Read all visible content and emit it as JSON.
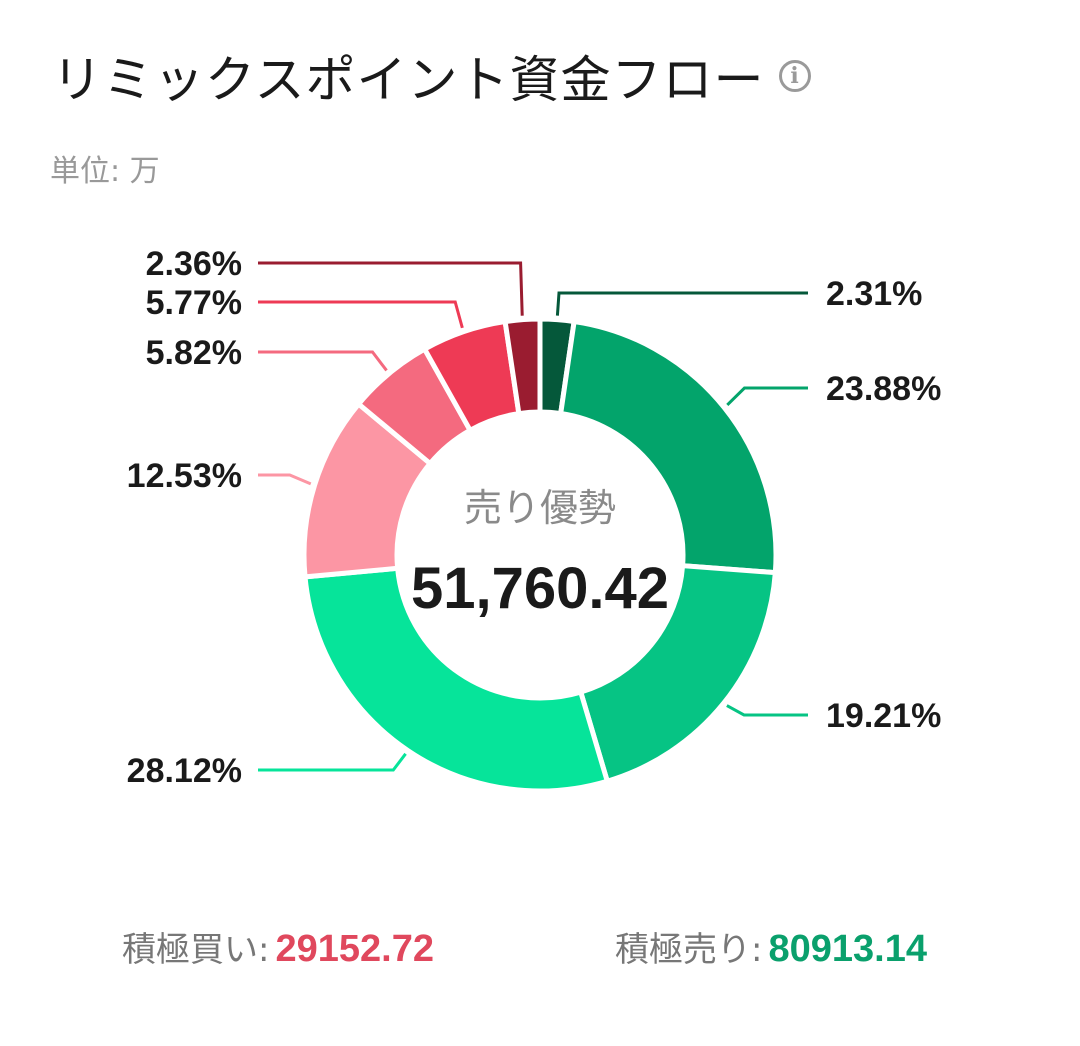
{
  "header": {
    "title": "リミックスポイント資金フロー",
    "unit": "単位: 万",
    "info_icon": "info-icon"
  },
  "chart_data": {
    "type": "pie",
    "variant": "donut",
    "center_title": "売り優勢",
    "center_value": "51,760.42",
    "slices": [
      {
        "label": "2.31%",
        "value": 2.31,
        "color": "#05583a",
        "side": "right"
      },
      {
        "label": "23.88%",
        "value": 23.88,
        "color": "#03a46b",
        "side": "right"
      },
      {
        "label": "19.21%",
        "value": 19.21,
        "color": "#06c484",
        "side": "right"
      },
      {
        "label": "28.12%",
        "value": 28.12,
        "color": "#06e49a",
        "side": "left"
      },
      {
        "label": "12.53%",
        "value": 12.53,
        "color": "#fc96a4",
        "side": "left"
      },
      {
        "label": "5.82%",
        "value": 5.82,
        "color": "#f46a7f",
        "side": "left"
      },
      {
        "label": "5.77%",
        "value": 5.77,
        "color": "#ee3a55",
        "side": "left"
      },
      {
        "label": "2.36%",
        "value": 2.36,
        "color": "#9a1c30",
        "side": "left"
      }
    ]
  },
  "summary": {
    "buy_label": "積極買い:",
    "buy_value": "29152.72",
    "buy_color": "#e0485d",
    "sell_label": "積極売り:",
    "sell_value": "80913.14",
    "sell_color": "#0aa06c"
  }
}
